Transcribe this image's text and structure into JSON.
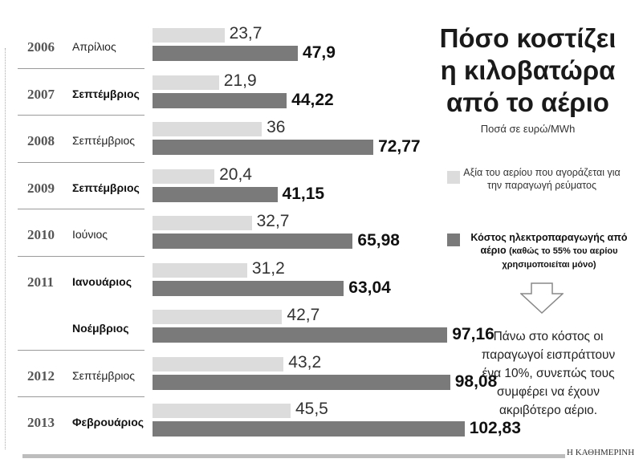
{
  "title": "Πόσο κοστίζει η κιλοβατώρα από το αέριο",
  "subtitle": "Ποσά σε ευρώ/MWh",
  "legend": [
    {
      "label": "Αξία του αερίου που αγοράζεται για την παραγωγή ρεύματος",
      "color": "#dcdcdc"
    },
    {
      "label": "Κόστος ηλεκτροπαραγωγής από αέριο",
      "note": "(καθώς το 55% του αερίου χρησιμοποιείται μόνο)",
      "color": "#7a7a7a"
    }
  ],
  "note": "Πάνω στο κόστος οι παραγωγοί εισπράττουν ένα 10%, συνεπώς τους συμφέρει να έχουν ακριβότερο αέριο.",
  "source": "Η ΚΑΘΗΜΕΡΙΝΗ",
  "chart_data": {
    "type": "bar",
    "orientation": "horizontal",
    "categories": [
      {
        "year": "2006",
        "month": "Απρίλιος",
        "month_bold": false
      },
      {
        "year": "2007",
        "month": "Σεπτέμβριος",
        "month_bold": true
      },
      {
        "year": "2008",
        "month": "Σεπτέμβριος",
        "month_bold": false
      },
      {
        "year": "2009",
        "month": "Σεπτέμβριος",
        "month_bold": true
      },
      {
        "year": "2010",
        "month": "Ιούνιος",
        "month_bold": false
      },
      {
        "year": "2011",
        "month": "Ιανουάριος",
        "month_bold": true
      },
      {
        "year": "",
        "month": "Νοέμβριος",
        "month_bold": true
      },
      {
        "year": "2012",
        "month": "Σεπτέμβριος",
        "month_bold": false
      },
      {
        "year": "2013",
        "month": "Φεβρουάριος",
        "month_bold": true
      }
    ],
    "series": [
      {
        "values": [
          23.7,
          21.9,
          36,
          20.4,
          32.7,
          31.2,
          42.7,
          43.2,
          45.5
        ],
        "labels": [
          "23,7",
          "21,9",
          "36",
          "20,4",
          "32,7",
          "31,2",
          "42,7",
          "43,2",
          "45,5"
        ]
      },
      {
        "values": [
          47.9,
          44.22,
          72.77,
          41.15,
          65.98,
          63.04,
          97.16,
          98.08,
          102.83
        ],
        "labels": [
          "47,9",
          "44,22",
          "72,77",
          "41,15",
          "65,98",
          "63,04",
          "97,16",
          "98,08",
          "102,83"
        ]
      }
    ]
  }
}
